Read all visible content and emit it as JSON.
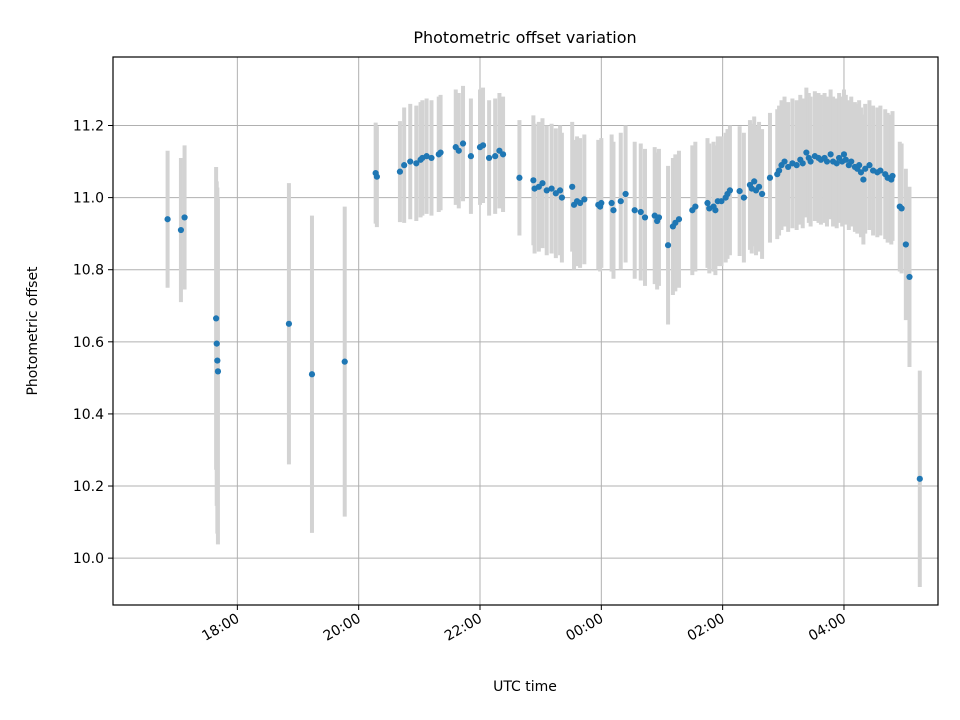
{
  "chart_data": {
    "type": "scatter",
    "title": "Photometric offset variation",
    "xlabel": "UTC time",
    "ylabel": "Photometric offset",
    "x_unit": "hours UTC (values past 24 are after midnight)",
    "xlim": [
      15.95,
      29.55
    ],
    "ylim": [
      9.87,
      11.39
    ],
    "grid": true,
    "x_ticks": [
      18,
      20,
      22,
      24,
      26,
      28
    ],
    "x_tick_labels": [
      "18:00",
      "20:00",
      "22:00",
      "00:00",
      "02:00",
      "04:00"
    ],
    "y_ticks": [
      10.0,
      10.2,
      10.4,
      10.6,
      10.8,
      11.0,
      11.2
    ],
    "y_tick_labels": [
      "10.0",
      "10.2",
      "10.4",
      "10.6",
      "10.8",
      "11.0",
      "11.2"
    ],
    "colors": {
      "point": "#1f77b4",
      "errorbar": "#d3d3d3",
      "grid": "#b0b0b0"
    },
    "series": [
      {
        "points": [
          [
            16.85,
            10.94,
            0.19
          ],
          [
            17.07,
            10.91,
            0.2
          ],
          [
            17.13,
            10.945,
            0.2
          ],
          [
            17.65,
            10.665,
            0.42
          ],
          [
            17.66,
            10.595,
            0.45
          ],
          [
            17.67,
            10.548,
            0.48
          ],
          [
            17.68,
            10.518,
            0.48
          ],
          [
            18.85,
            10.65,
            0.39
          ],
          [
            19.23,
            10.51,
            0.44
          ],
          [
            19.77,
            10.545,
            0.43
          ],
          [
            20.28,
            11.068,
            0.14
          ],
          [
            20.3,
            11.058,
            0.14
          ],
          [
            20.68,
            11.072,
            0.14
          ],
          [
            20.75,
            11.09,
            0.16
          ],
          [
            20.85,
            11.1,
            0.16
          ],
          [
            20.95,
            11.095,
            0.16
          ],
          [
            21.02,
            11.105,
            0.16
          ],
          [
            21.05,
            11.11,
            0.16
          ],
          [
            21.12,
            11.115,
            0.16
          ],
          [
            21.2,
            11.11,
            0.16
          ],
          [
            21.32,
            11.12,
            0.16
          ],
          [
            21.35,
            11.125,
            0.16
          ],
          [
            21.6,
            11.14,
            0.16
          ],
          [
            21.65,
            11.13,
            0.16
          ],
          [
            21.72,
            11.15,
            0.16
          ],
          [
            21.85,
            11.115,
            0.16
          ],
          [
            22.0,
            11.14,
            0.16
          ],
          [
            22.05,
            11.145,
            0.16
          ],
          [
            22.15,
            11.11,
            0.16
          ],
          [
            22.25,
            11.115,
            0.16
          ],
          [
            22.32,
            11.13,
            0.16
          ],
          [
            22.38,
            11.12,
            0.16
          ],
          [
            22.65,
            11.055,
            0.16
          ],
          [
            22.88,
            11.048,
            0.18
          ],
          [
            22.9,
            11.025,
            0.18
          ],
          [
            22.97,
            11.03,
            0.18
          ],
          [
            23.03,
            11.04,
            0.18
          ],
          [
            23.1,
            11.02,
            0.18
          ],
          [
            23.18,
            11.025,
            0.18
          ],
          [
            23.25,
            11.012,
            0.18
          ],
          [
            23.32,
            11.02,
            0.18
          ],
          [
            23.35,
            11.0,
            0.18
          ],
          [
            23.52,
            11.03,
            0.18
          ],
          [
            23.55,
            10.98,
            0.18
          ],
          [
            23.6,
            10.99,
            0.18
          ],
          [
            23.65,
            10.985,
            0.18
          ],
          [
            23.72,
            10.995,
            0.18
          ],
          [
            23.95,
            10.98,
            0.18
          ],
          [
            23.98,
            10.975,
            0.18
          ],
          [
            24.0,
            10.985,
            0.18
          ],
          [
            24.17,
            10.985,
            0.19
          ],
          [
            24.2,
            10.965,
            0.19
          ],
          [
            24.32,
            10.99,
            0.19
          ],
          [
            24.4,
            11.01,
            0.19
          ],
          [
            24.55,
            10.965,
            0.19
          ],
          [
            24.65,
            10.96,
            0.19
          ],
          [
            24.72,
            10.945,
            0.19
          ],
          [
            24.88,
            10.95,
            0.19
          ],
          [
            24.92,
            10.935,
            0.19
          ],
          [
            24.95,
            10.945,
            0.19
          ],
          [
            25.1,
            10.868,
            0.22
          ],
          [
            25.18,
            10.92,
            0.19
          ],
          [
            25.22,
            10.93,
            0.19
          ],
          [
            25.28,
            10.94,
            0.19
          ],
          [
            25.5,
            10.965,
            0.18
          ],
          [
            25.55,
            10.975,
            0.18
          ],
          [
            25.75,
            10.985,
            0.18
          ],
          [
            25.78,
            10.97,
            0.18
          ],
          [
            25.85,
            10.975,
            0.18
          ],
          [
            25.88,
            10.965,
            0.18
          ],
          [
            25.92,
            10.99,
            0.18
          ],
          [
            25.98,
            10.99,
            0.18
          ],
          [
            26.05,
            11.0,
            0.18
          ],
          [
            26.08,
            11.01,
            0.18
          ],
          [
            26.12,
            11.02,
            0.18
          ],
          [
            26.28,
            11.018,
            0.18
          ],
          [
            26.35,
            11.0,
            0.18
          ],
          [
            26.45,
            11.035,
            0.18
          ],
          [
            26.48,
            11.025,
            0.18
          ],
          [
            26.52,
            11.045,
            0.18
          ],
          [
            26.55,
            11.02,
            0.18
          ],
          [
            26.6,
            11.03,
            0.18
          ],
          [
            26.65,
            11.01,
            0.18
          ],
          [
            26.78,
            11.055,
            0.18
          ],
          [
            26.9,
            11.065,
            0.18
          ],
          [
            26.93,
            11.075,
            0.18
          ],
          [
            26.97,
            11.09,
            0.18
          ],
          [
            27.02,
            11.1,
            0.18
          ],
          [
            27.08,
            11.085,
            0.18
          ],
          [
            27.15,
            11.095,
            0.18
          ],
          [
            27.22,
            11.09,
            0.18
          ],
          [
            27.28,
            11.105,
            0.18
          ],
          [
            27.32,
            11.095,
            0.18
          ],
          [
            27.38,
            11.125,
            0.18
          ],
          [
            27.42,
            11.11,
            0.18
          ],
          [
            27.45,
            11.1,
            0.18
          ],
          [
            27.52,
            11.115,
            0.18
          ],
          [
            27.58,
            11.11,
            0.18
          ],
          [
            27.62,
            11.105,
            0.18
          ],
          [
            27.68,
            11.11,
            0.18
          ],
          [
            27.72,
            11.1,
            0.18
          ],
          [
            27.78,
            11.12,
            0.18
          ],
          [
            27.82,
            11.1,
            0.18
          ],
          [
            27.88,
            11.095,
            0.18
          ],
          [
            27.92,
            11.11,
            0.18
          ],
          [
            27.97,
            11.1,
            0.18
          ],
          [
            28.0,
            11.12,
            0.18
          ],
          [
            28.03,
            11.105,
            0.18
          ],
          [
            28.08,
            11.09,
            0.18
          ],
          [
            28.12,
            11.1,
            0.18
          ],
          [
            28.18,
            11.085,
            0.18
          ],
          [
            28.22,
            11.08,
            0.18
          ],
          [
            28.25,
            11.09,
            0.18
          ],
          [
            28.28,
            11.07,
            0.18
          ],
          [
            28.32,
            11.05,
            0.18
          ],
          [
            28.35,
            11.08,
            0.18
          ],
          [
            28.42,
            11.09,
            0.18
          ],
          [
            28.48,
            11.075,
            0.18
          ],
          [
            28.55,
            11.07,
            0.18
          ],
          [
            28.6,
            11.075,
            0.18
          ],
          [
            28.68,
            11.065,
            0.18
          ],
          [
            28.72,
            11.055,
            0.18
          ],
          [
            28.78,
            11.05,
            0.18
          ],
          [
            28.8,
            11.06,
            0.18
          ],
          [
            28.92,
            10.975,
            0.18
          ],
          [
            28.95,
            10.97,
            0.18
          ],
          [
            29.02,
            10.87,
            0.21
          ],
          [
            29.08,
            10.78,
            0.25
          ],
          [
            29.25,
            10.22,
            0.3
          ]
        ]
      }
    ]
  }
}
